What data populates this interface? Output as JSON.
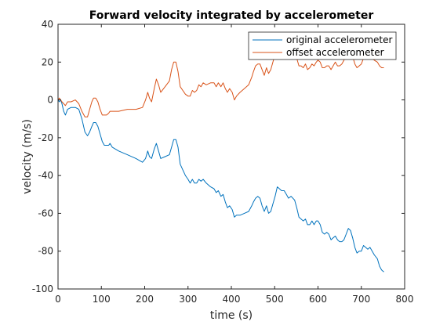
{
  "chart_data": {
    "type": "line",
    "title": "Forward velocity integrated by accelerometer",
    "xlabel": "time (s)",
    "ylabel": "velocity (m/s)",
    "xlim": [
      0,
      800
    ],
    "ylim": [
      -100,
      40
    ],
    "xticks": [
      "0",
      "100",
      "200",
      "300",
      "400",
      "500",
      "600",
      "700",
      "800"
    ],
    "yticks": [
      "-100",
      "-80",
      "-60",
      "-40",
      "-20",
      "0",
      "20",
      "40"
    ],
    "grid": false,
    "legend_position": "top-right",
    "series": [
      {
        "name": "original accelerometer",
        "color": "#0072bd",
        "points": [
          [
            0,
            0
          ],
          [
            3,
            -1
          ],
          [
            6,
            0
          ],
          [
            9,
            -2
          ],
          [
            13,
            -6
          ],
          [
            17,
            -8
          ],
          [
            22,
            -5
          ],
          [
            30,
            -4
          ],
          [
            40,
            -4
          ],
          [
            48,
            -5
          ],
          [
            55,
            -10
          ],
          [
            62,
            -17
          ],
          [
            68,
            -19
          ],
          [
            73,
            -17
          ],
          [
            78,
            -14
          ],
          [
            82,
            -12
          ],
          [
            87,
            -12
          ],
          [
            92,
            -14
          ],
          [
            97,
            -18
          ],
          [
            102,
            -22
          ],
          [
            107,
            -24
          ],
          [
            112,
            -24
          ],
          [
            117,
            -24
          ],
          [
            120,
            -23
          ],
          [
            125,
            -25
          ],
          [
            140,
            -27
          ],
          [
            160,
            -29
          ],
          [
            180,
            -31
          ],
          [
            195,
            -33
          ],
          [
            202,
            -31
          ],
          [
            207,
            -27
          ],
          [
            211,
            -30
          ],
          [
            216,
            -31
          ],
          [
            222,
            -26
          ],
          [
            227,
            -23
          ],
          [
            232,
            -27
          ],
          [
            237,
            -31
          ],
          [
            247,
            -30
          ],
          [
            257,
            -29
          ],
          [
            262,
            -25
          ],
          [
            267,
            -21
          ],
          [
            272,
            -21
          ],
          [
            277,
            -25
          ],
          [
            282,
            -34
          ],
          [
            288,
            -37
          ],
          [
            294,
            -40
          ],
          [
            300,
            -42
          ],
          [
            305,
            -44
          ],
          [
            310,
            -42
          ],
          [
            315,
            -44
          ],
          [
            320,
            -44
          ],
          [
            325,
            -42
          ],
          [
            330,
            -43
          ],
          [
            335,
            -42
          ],
          [
            342,
            -44
          ],
          [
            352,
            -46
          ],
          [
            360,
            -47
          ],
          [
            365,
            -49
          ],
          [
            370,
            -48
          ],
          [
            376,
            -51
          ],
          [
            381,
            -50
          ],
          [
            386,
            -54
          ],
          [
            391,
            -57
          ],
          [
            396,
            -56
          ],
          [
            402,
            -58
          ],
          [
            407,
            -62
          ],
          [
            412,
            -61
          ],
          [
            420,
            -61
          ],
          [
            430,
            -60
          ],
          [
            440,
            -59
          ],
          [
            447,
            -56
          ],
          [
            451,
            -54
          ],
          [
            456,
            -52
          ],
          [
            461,
            -51
          ],
          [
            466,
            -52
          ],
          [
            471,
            -56
          ],
          [
            476,
            -59
          ],
          [
            481,
            -56
          ],
          [
            486,
            -60
          ],
          [
            491,
            -59
          ],
          [
            496,
            -55
          ],
          [
            501,
            -51
          ],
          [
            506,
            -46
          ],
          [
            511,
            -47
          ],
          [
            516,
            -48
          ],
          [
            522,
            -48
          ],
          [
            527,
            -50
          ],
          [
            532,
            -52
          ],
          [
            538,
            -51
          ],
          [
            546,
            -53
          ],
          [
            551,
            -57
          ],
          [
            556,
            -62
          ],
          [
            561,
            -63
          ],
          [
            566,
            -64
          ],
          [
            571,
            -63
          ],
          [
            576,
            -66
          ],
          [
            581,
            -66
          ],
          [
            586,
            -64
          ],
          [
            591,
            -66
          ],
          [
            596,
            -64
          ],
          [
            600,
            -64
          ],
          [
            605,
            -66
          ],
          [
            610,
            -70
          ],
          [
            615,
            -71
          ],
          [
            620,
            -70
          ],
          [
            625,
            -71
          ],
          [
            630,
            -74
          ],
          [
            635,
            -73
          ],
          [
            640,
            -72
          ],
          [
            645,
            -74
          ],
          [
            650,
            -75
          ],
          [
            655,
            -75
          ],
          [
            660,
            -74
          ],
          [
            665,
            -71
          ],
          [
            670,
            -68
          ],
          [
            675,
            -69
          ],
          [
            680,
            -73
          ],
          [
            685,
            -78
          ],
          [
            690,
            -81
          ],
          [
            695,
            -80
          ],
          [
            700,
            -80
          ],
          [
            705,
            -77
          ],
          [
            710,
            -78
          ],
          [
            715,
            -79
          ],
          [
            720,
            -78
          ],
          [
            725,
            -80
          ],
          [
            730,
            -82
          ],
          [
            737,
            -84
          ],
          [
            742,
            -88
          ],
          [
            747,
            -90
          ],
          [
            752,
            -91
          ]
        ]
      },
      {
        "name": "offset accelerometer",
        "color": "#d95319",
        "points": [
          [
            0,
            0
          ],
          [
            3,
            1
          ],
          [
            6,
            0
          ],
          [
            9,
            -1
          ],
          [
            13,
            -2
          ],
          [
            17,
            -3
          ],
          [
            22,
            -1
          ],
          [
            30,
            -1
          ],
          [
            40,
            0
          ],
          [
            48,
            -2
          ],
          [
            55,
            -6
          ],
          [
            62,
            -9
          ],
          [
            68,
            -9
          ],
          [
            73,
            -5
          ],
          [
            78,
            -1
          ],
          [
            82,
            1
          ],
          [
            87,
            1
          ],
          [
            92,
            -1
          ],
          [
            97,
            -5
          ],
          [
            102,
            -8
          ],
          [
            107,
            -8
          ],
          [
            112,
            -8
          ],
          [
            117,
            -7
          ],
          [
            120,
            -6
          ],
          [
            125,
            -6
          ],
          [
            140,
            -6
          ],
          [
            160,
            -5
          ],
          [
            180,
            -5
          ],
          [
            195,
            -4
          ],
          [
            202,
            0
          ],
          [
            207,
            4
          ],
          [
            211,
            1
          ],
          [
            216,
            -1
          ],
          [
            222,
            6
          ],
          [
            227,
            11
          ],
          [
            232,
            8
          ],
          [
            237,
            4
          ],
          [
            247,
            7
          ],
          [
            257,
            10
          ],
          [
            262,
            16
          ],
          [
            267,
            20
          ],
          [
            272,
            20
          ],
          [
            277,
            15
          ],
          [
            282,
            7
          ],
          [
            288,
            5
          ],
          [
            294,
            3
          ],
          [
            300,
            2
          ],
          [
            305,
            2
          ],
          [
            310,
            5
          ],
          [
            315,
            4
          ],
          [
            320,
            5
          ],
          [
            325,
            8
          ],
          [
            330,
            7
          ],
          [
            335,
            9
          ],
          [
            342,
            8
          ],
          [
            352,
            9
          ],
          [
            360,
            9
          ],
          [
            365,
            7
          ],
          [
            370,
            9
          ],
          [
            376,
            7
          ],
          [
            381,
            9
          ],
          [
            386,
            6
          ],
          [
            391,
            4
          ],
          [
            396,
            6
          ],
          [
            402,
            4
          ],
          [
            407,
            0
          ],
          [
            412,
            2
          ],
          [
            420,
            4
          ],
          [
            430,
            6
          ],
          [
            440,
            8
          ],
          [
            447,
            12
          ],
          [
            451,
            15
          ],
          [
            456,
            18
          ],
          [
            461,
            19
          ],
          [
            466,
            19
          ],
          [
            471,
            16
          ],
          [
            476,
            13
          ],
          [
            481,
            17
          ],
          [
            486,
            14
          ],
          [
            491,
            16
          ],
          [
            496,
            20
          ],
          [
            501,
            24
          ],
          [
            506,
            29
          ],
          [
            511,
            28
          ],
          [
            516,
            28
          ],
          [
            522,
            28
          ],
          [
            527,
            26
          ],
          [
            532,
            24
          ],
          [
            538,
            26
          ],
          [
            546,
            25
          ],
          [
            551,
            22
          ],
          [
            556,
            18
          ],
          [
            561,
            18
          ],
          [
            566,
            17
          ],
          [
            571,
            19
          ],
          [
            576,
            16
          ],
          [
            581,
            17
          ],
          [
            586,
            19
          ],
          [
            591,
            18
          ],
          [
            596,
            20
          ],
          [
            600,
            21
          ],
          [
            605,
            20
          ],
          [
            610,
            17
          ],
          [
            615,
            17
          ],
          [
            620,
            18
          ],
          [
            625,
            18
          ],
          [
            630,
            16
          ],
          [
            635,
            18
          ],
          [
            640,
            20
          ],
          [
            645,
            18
          ],
          [
            650,
            18
          ],
          [
            655,
            19
          ],
          [
            660,
            21
          ],
          [
            665,
            24
          ],
          [
            670,
            27
          ],
          [
            675,
            26
          ],
          [
            680,
            23
          ],
          [
            685,
            19
          ],
          [
            690,
            17
          ],
          [
            695,
            18
          ],
          [
            700,
            19
          ],
          [
            705,
            22
          ],
          [
            710,
            22
          ],
          [
            715,
            22
          ],
          [
            720,
            24
          ],
          [
            725,
            22
          ],
          [
            730,
            21
          ],
          [
            737,
            20
          ],
          [
            742,
            18
          ],
          [
            747,
            17
          ],
          [
            752,
            17
          ]
        ]
      }
    ]
  }
}
